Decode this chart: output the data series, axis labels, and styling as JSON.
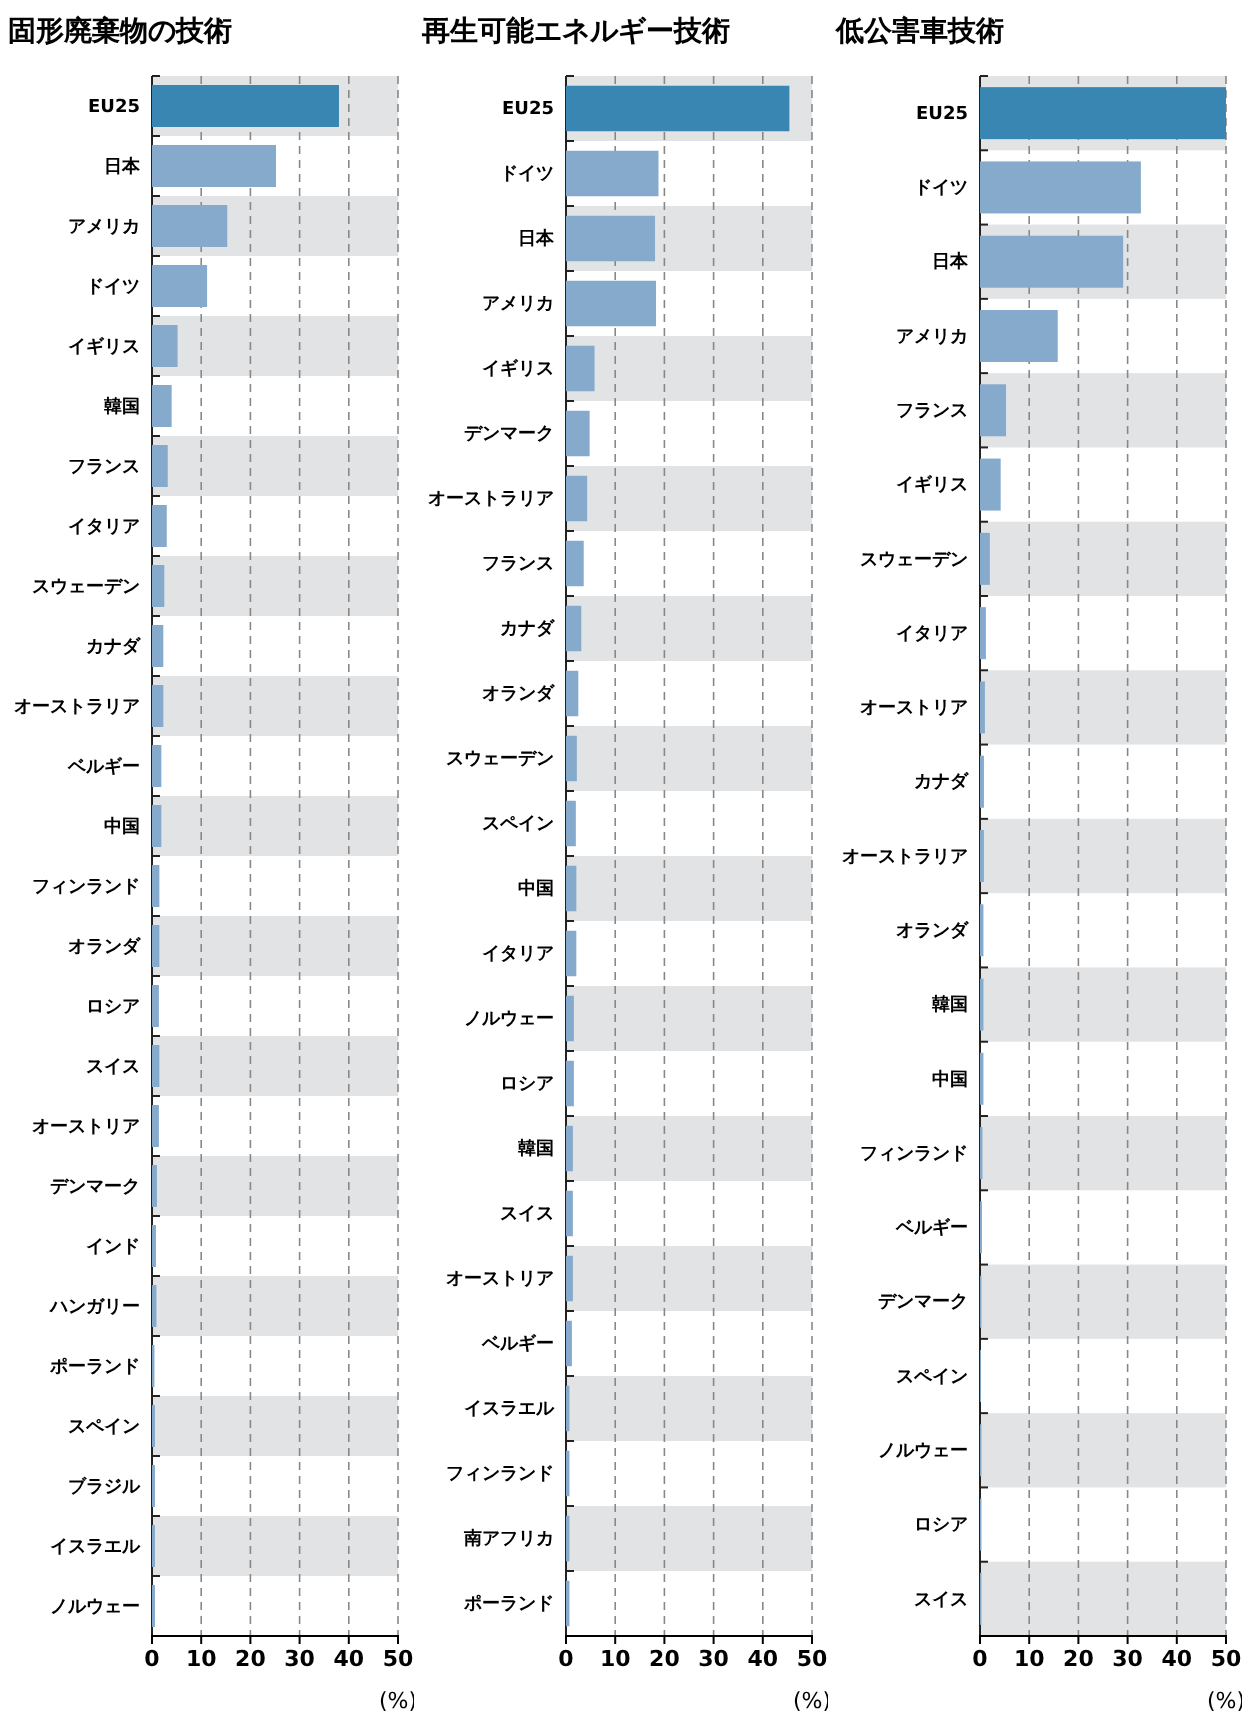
{
  "chart_data": [
    {
      "type": "bar",
      "orientation": "horizontal",
      "title": "固形廃棄物の技術",
      "xlabel": "(%)",
      "categories": [
        "EU25",
        "日本",
        "アメリカ",
        "ドイツ",
        "イギリス",
        "韓国",
        "フランス",
        "イタリア",
        "スウェーデン",
        "カナダ",
        "オーストラリア",
        "ベルギー",
        "中国",
        "フィンランド",
        "オランダ",
        "ロシア",
        "スイス",
        "オーストリア",
        "デンマーク",
        "インド",
        "ハンガリー",
        "ポーランド",
        "スペイン",
        "ブラジル",
        "イスラエル",
        "ノルウェー"
      ],
      "values": [
        38,
        25.2,
        15.3,
        11.2,
        5.2,
        4,
        3.2,
        3,
        2.5,
        2.3,
        2.3,
        1.9,
        1.9,
        1.5,
        1.5,
        1.4,
        1.5,
        1.4,
        1,
        0.8,
        0.9,
        0.5,
        0.6,
        0.6,
        0.6,
        0.6
      ],
      "colors": [
        "#3a86b2",
        "#86aacb",
        "#86aacb",
        "#86aacb",
        "#86aacb",
        "#86aacb",
        "#86aacb",
        "#86aacb",
        "#86aacb",
        "#86aacb",
        "#86aacb",
        "#86aacb",
        "#86aacb",
        "#86aacb",
        "#86aacb",
        "#86aacb",
        "#86aacb",
        "#86aacb",
        "#86aacb",
        "#86aacb",
        "#86aacb",
        "#86aacb",
        "#86aacb",
        "#86aacb",
        "#86aacb",
        "#86aacb"
      ],
      "xlim": [
        0,
        50
      ],
      "xticks": [
        0,
        10,
        20,
        30,
        40,
        50
      ],
      "grid": "x"
    },
    {
      "type": "bar",
      "orientation": "horizontal",
      "title": "再生可能エネルギー技術",
      "xlabel": "(%)",
      "categories": [
        "EU25",
        "ドイツ",
        "日本",
        "アメリカ",
        "イギリス",
        "デンマーク",
        "オーストラリア",
        "フランス",
        "カナダ",
        "オランダ",
        "スウェーデン",
        "スペイン",
        "中国",
        "イタリア",
        "ノルウェー",
        "ロシア",
        "韓国",
        "スイス",
        "オーストリア",
        "ベルギー",
        "イスラエル",
        "フィンランド",
        "南アフリカ",
        "ポーランド"
      ],
      "values": [
        45.4,
        18.8,
        18.1,
        18.3,
        5.8,
        4.8,
        4.3,
        3.6,
        3.1,
        2.5,
        2.2,
        2,
        2.1,
        2.1,
        1.6,
        1.6,
        1.4,
        1.4,
        1.4,
        1.2,
        0.7,
        0.7,
        0.7,
        0.7
      ],
      "colors": [
        "#3a86b2",
        "#86aacb",
        "#86aacb",
        "#86aacb",
        "#86aacb",
        "#86aacb",
        "#86aacb",
        "#86aacb",
        "#86aacb",
        "#86aacb",
        "#86aacb",
        "#86aacb",
        "#86aacb",
        "#86aacb",
        "#86aacb",
        "#86aacb",
        "#86aacb",
        "#86aacb",
        "#86aacb",
        "#86aacb",
        "#86aacb",
        "#86aacb",
        "#86aacb",
        "#86aacb"
      ],
      "xlim": [
        0,
        50
      ],
      "xticks": [
        0,
        10,
        20,
        30,
        40,
        50
      ],
      "grid": "x"
    },
    {
      "type": "bar",
      "orientation": "horizontal",
      "title": "低公害車技術",
      "xlabel": "(%)",
      "categories": [
        "EU25",
        "ドイツ",
        "日本",
        "アメリカ",
        "フランス",
        "イギリス",
        "スウェーデン",
        "イタリア",
        "オーストリア",
        "カナダ",
        "オーストラリア",
        "オランダ",
        "韓国",
        "中国",
        "フィンランド",
        "ベルギー",
        "デンマーク",
        "スペイン",
        "ノルウェー",
        "ロシア",
        "スイス"
      ],
      "values": [
        50,
        32.7,
        29.1,
        15.8,
        5.3,
        4.2,
        2,
        1.2,
        1,
        0.8,
        0.8,
        0.7,
        0.7,
        0.7,
        0.5,
        0.4,
        0.3,
        0.2,
        0.3,
        0.3,
        0.3
      ],
      "colors": [
        "#3a86b2",
        "#86aacb",
        "#86aacb",
        "#86aacb",
        "#86aacb",
        "#86aacb",
        "#86aacb",
        "#86aacb",
        "#86aacb",
        "#86aacb",
        "#86aacb",
        "#86aacb",
        "#86aacb",
        "#86aacb",
        "#86aacb",
        "#86aacb",
        "#86aacb",
        "#86aacb",
        "#86aacb",
        "#86aacb",
        "#86aacb"
      ],
      "xlim": [
        0,
        50
      ],
      "xticks": [
        0,
        10,
        20,
        30,
        40,
        50
      ],
      "grid": "x"
    }
  ]
}
